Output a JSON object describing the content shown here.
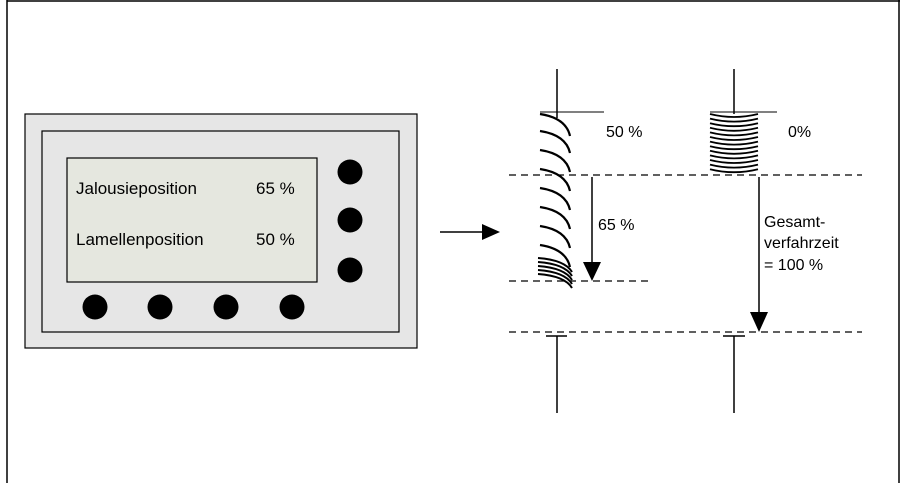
{
  "panel": {
    "display": {
      "row1_label": "Jalousieposition",
      "row1_value": "65 %",
      "row2_label": "Lamellenposition",
      "row2_value": "50 %"
    },
    "side_button_count": 3,
    "bottom_button_count": 4
  },
  "blind_left": {
    "slat_angle_label": "50 %",
    "travel_label": "65 %"
  },
  "blind_right": {
    "slat_angle_label": "0%",
    "total_travel_label": [
      "Gesamt-",
      "verfahrzeit",
      "= 100 %"
    ]
  },
  "colors": {
    "line": "#000000",
    "panel_bezel": "#e6e6e6",
    "display_bg": "#e5e7df"
  }
}
